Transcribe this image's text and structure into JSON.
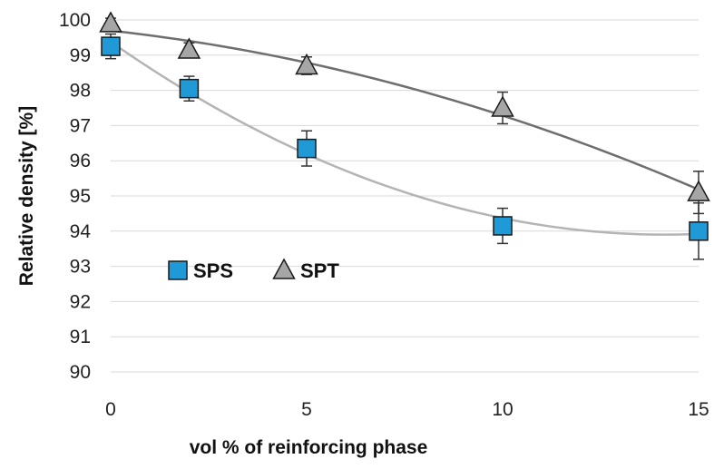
{
  "chart_data": {
    "type": "scatter",
    "title": "",
    "xlabel": "vol % of reinforcing phase",
    "ylabel": "Relative density [%]",
    "xlim": [
      0,
      15
    ],
    "ylim": [
      90,
      100
    ],
    "xticks": [
      "0",
      "5",
      "10",
      "15"
    ],
    "yticks": [
      "90",
      "91",
      "92",
      "93",
      "94",
      "95",
      "96",
      "97",
      "98",
      "99",
      "100"
    ],
    "grid": "horizontal",
    "legend_position": "lower-left",
    "series": [
      {
        "name": "SPS",
        "marker": "square",
        "color": "#1f9ad6",
        "trend_color": "#b4b4b4",
        "x": [
          0,
          2,
          5,
          10,
          15
        ],
        "y": [
          99.25,
          98.05,
          96.35,
          94.15,
          94.0
        ],
        "error": [
          0.35,
          0.35,
          0.5,
          0.5,
          0.8
        ]
      },
      {
        "name": "SPT",
        "marker": "triangle",
        "color": "#a6a6a6",
        "trend_color": "#6e6e6e",
        "x": [
          0,
          2,
          5,
          10,
          15
        ],
        "y": [
          99.9,
          99.15,
          98.7,
          97.5,
          95.1
        ],
        "error": [
          0.15,
          0.2,
          0.25,
          0.45,
          0.6
        ]
      }
    ]
  }
}
